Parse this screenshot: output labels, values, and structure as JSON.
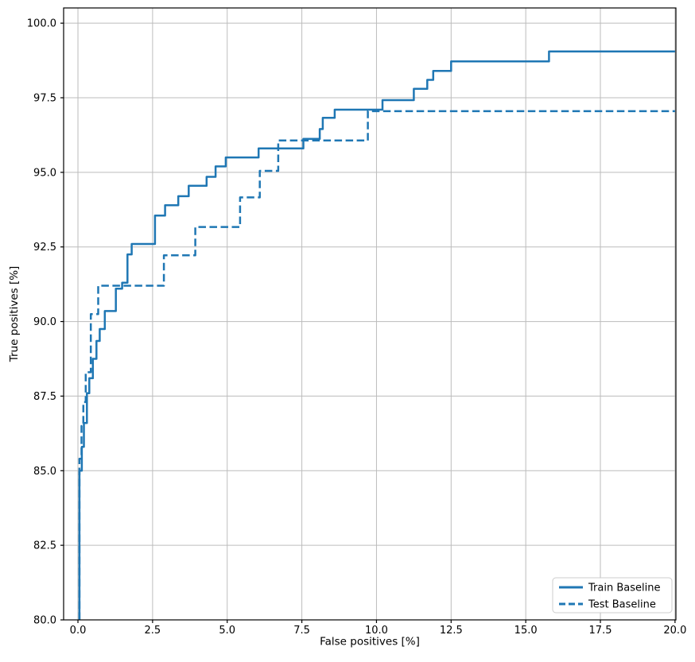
{
  "figure": {
    "background": "#ffffff",
    "text_color": "#000000",
    "spine_color": "#000000",
    "grid_color": "#bcbcbc"
  },
  "chart_data": {
    "type": "line",
    "subtype": "step-roc-curve",
    "title": "",
    "xlabel": "False positives [%]",
    "ylabel": "True positives [%]",
    "xlim": [
      -0.48,
      20.03
    ],
    "ylim": [
      80.0,
      100.51
    ],
    "xticks": [
      0.0,
      2.5,
      5.0,
      7.5,
      10.0,
      12.5,
      15.0,
      17.5,
      20.0
    ],
    "yticks": [
      80.0,
      82.5,
      85.0,
      87.5,
      90.0,
      92.5,
      95.0,
      97.5,
      100.0
    ],
    "grid": true,
    "legend_position": "lower right",
    "line_color": "#1f77b4",
    "series": [
      {
        "name": "Train Baseline",
        "style": "solid",
        "points": [
          [
            0.05,
            80.0
          ],
          [
            0.05,
            85.0
          ],
          [
            0.13,
            85.0
          ],
          [
            0.13,
            85.8
          ],
          [
            0.2,
            85.8
          ],
          [
            0.2,
            86.6
          ],
          [
            0.3,
            86.6
          ],
          [
            0.3,
            87.6
          ],
          [
            0.38,
            87.6
          ],
          [
            0.38,
            88.1
          ],
          [
            0.5,
            88.1
          ],
          [
            0.5,
            88.75
          ],
          [
            0.62,
            88.75
          ],
          [
            0.62,
            89.35
          ],
          [
            0.73,
            89.35
          ],
          [
            0.73,
            89.75
          ],
          [
            0.9,
            89.75
          ],
          [
            0.9,
            90.35
          ],
          [
            1.27,
            90.35
          ],
          [
            1.27,
            91.1
          ],
          [
            1.48,
            91.1
          ],
          [
            1.48,
            91.3
          ],
          [
            1.66,
            91.3
          ],
          [
            1.66,
            92.25
          ],
          [
            1.8,
            92.25
          ],
          [
            1.8,
            92.6
          ],
          [
            2.58,
            92.6
          ],
          [
            2.58,
            93.55
          ],
          [
            2.92,
            93.55
          ],
          [
            2.92,
            93.9
          ],
          [
            3.36,
            93.9
          ],
          [
            3.36,
            94.2
          ],
          [
            3.71,
            94.2
          ],
          [
            3.71,
            94.55
          ],
          [
            4.31,
            94.55
          ],
          [
            4.31,
            94.85
          ],
          [
            4.61,
            94.85
          ],
          [
            4.61,
            95.2
          ],
          [
            4.95,
            95.2
          ],
          [
            4.95,
            95.5
          ],
          [
            6.05,
            95.5
          ],
          [
            6.05,
            95.8
          ],
          [
            7.55,
            95.8
          ],
          [
            7.55,
            96.12
          ],
          [
            8.1,
            96.12
          ],
          [
            8.1,
            96.45
          ],
          [
            8.2,
            96.45
          ],
          [
            8.2,
            96.83
          ],
          [
            8.6,
            96.83
          ],
          [
            8.6,
            97.1
          ],
          [
            10.2,
            97.1
          ],
          [
            10.2,
            97.42
          ],
          [
            11.25,
            97.42
          ],
          [
            11.25,
            97.8
          ],
          [
            11.7,
            97.8
          ],
          [
            11.7,
            98.1
          ],
          [
            11.9,
            98.1
          ],
          [
            11.9,
            98.4
          ],
          [
            12.5,
            98.4
          ],
          [
            12.5,
            98.72
          ],
          [
            15.78,
            98.72
          ],
          [
            15.78,
            99.05
          ],
          [
            20.0,
            99.05
          ]
        ]
      },
      {
        "name": "Test Baseline",
        "style": "dashed",
        "points": [
          [
            0.05,
            80.0
          ],
          [
            0.05,
            85.4
          ],
          [
            0.12,
            85.4
          ],
          [
            0.12,
            86.5
          ],
          [
            0.18,
            86.5
          ],
          [
            0.18,
            87.3
          ],
          [
            0.26,
            87.3
          ],
          [
            0.26,
            88.3
          ],
          [
            0.43,
            88.3
          ],
          [
            0.43,
            90.25
          ],
          [
            0.68,
            90.25
          ],
          [
            0.68,
            91.2
          ],
          [
            2.88,
            91.2
          ],
          [
            2.88,
            92.22
          ],
          [
            3.93,
            92.22
          ],
          [
            3.93,
            93.17
          ],
          [
            5.43,
            93.17
          ],
          [
            5.43,
            94.16
          ],
          [
            6.09,
            94.16
          ],
          [
            6.09,
            95.05
          ],
          [
            6.71,
            95.05
          ],
          [
            6.71,
            96.07
          ],
          [
            9.71,
            96.07
          ],
          [
            9.71,
            97.05
          ],
          [
            20.0,
            97.05
          ]
        ]
      }
    ]
  },
  "legend": {
    "items": [
      "Train Baseline",
      "Test Baseline"
    ]
  }
}
